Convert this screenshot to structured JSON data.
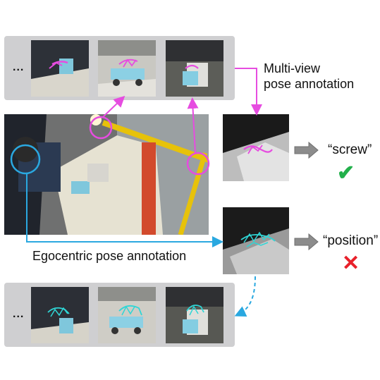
{
  "top_strip": {
    "ellipsis": "..."
  },
  "bottom_strip": {
    "ellipsis": "..."
  },
  "labels": {
    "multiview_line1": "Multi-view",
    "multiview_line2": "pose annotation",
    "egocentric": "Egocentric pose annotation"
  },
  "results": [
    {
      "word": "“screw”",
      "mark": "✔",
      "status": "correct",
      "color": "#22b04b"
    },
    {
      "word": "“position”",
      "mark": "✕",
      "status": "incorrect",
      "color": "#e8202a"
    }
  ],
  "colors": {
    "multiview": "#e64ce0",
    "egocentric": "#2aa8e0",
    "strip": "#cfcfd1",
    "arrow": "#8c8c8c"
  }
}
